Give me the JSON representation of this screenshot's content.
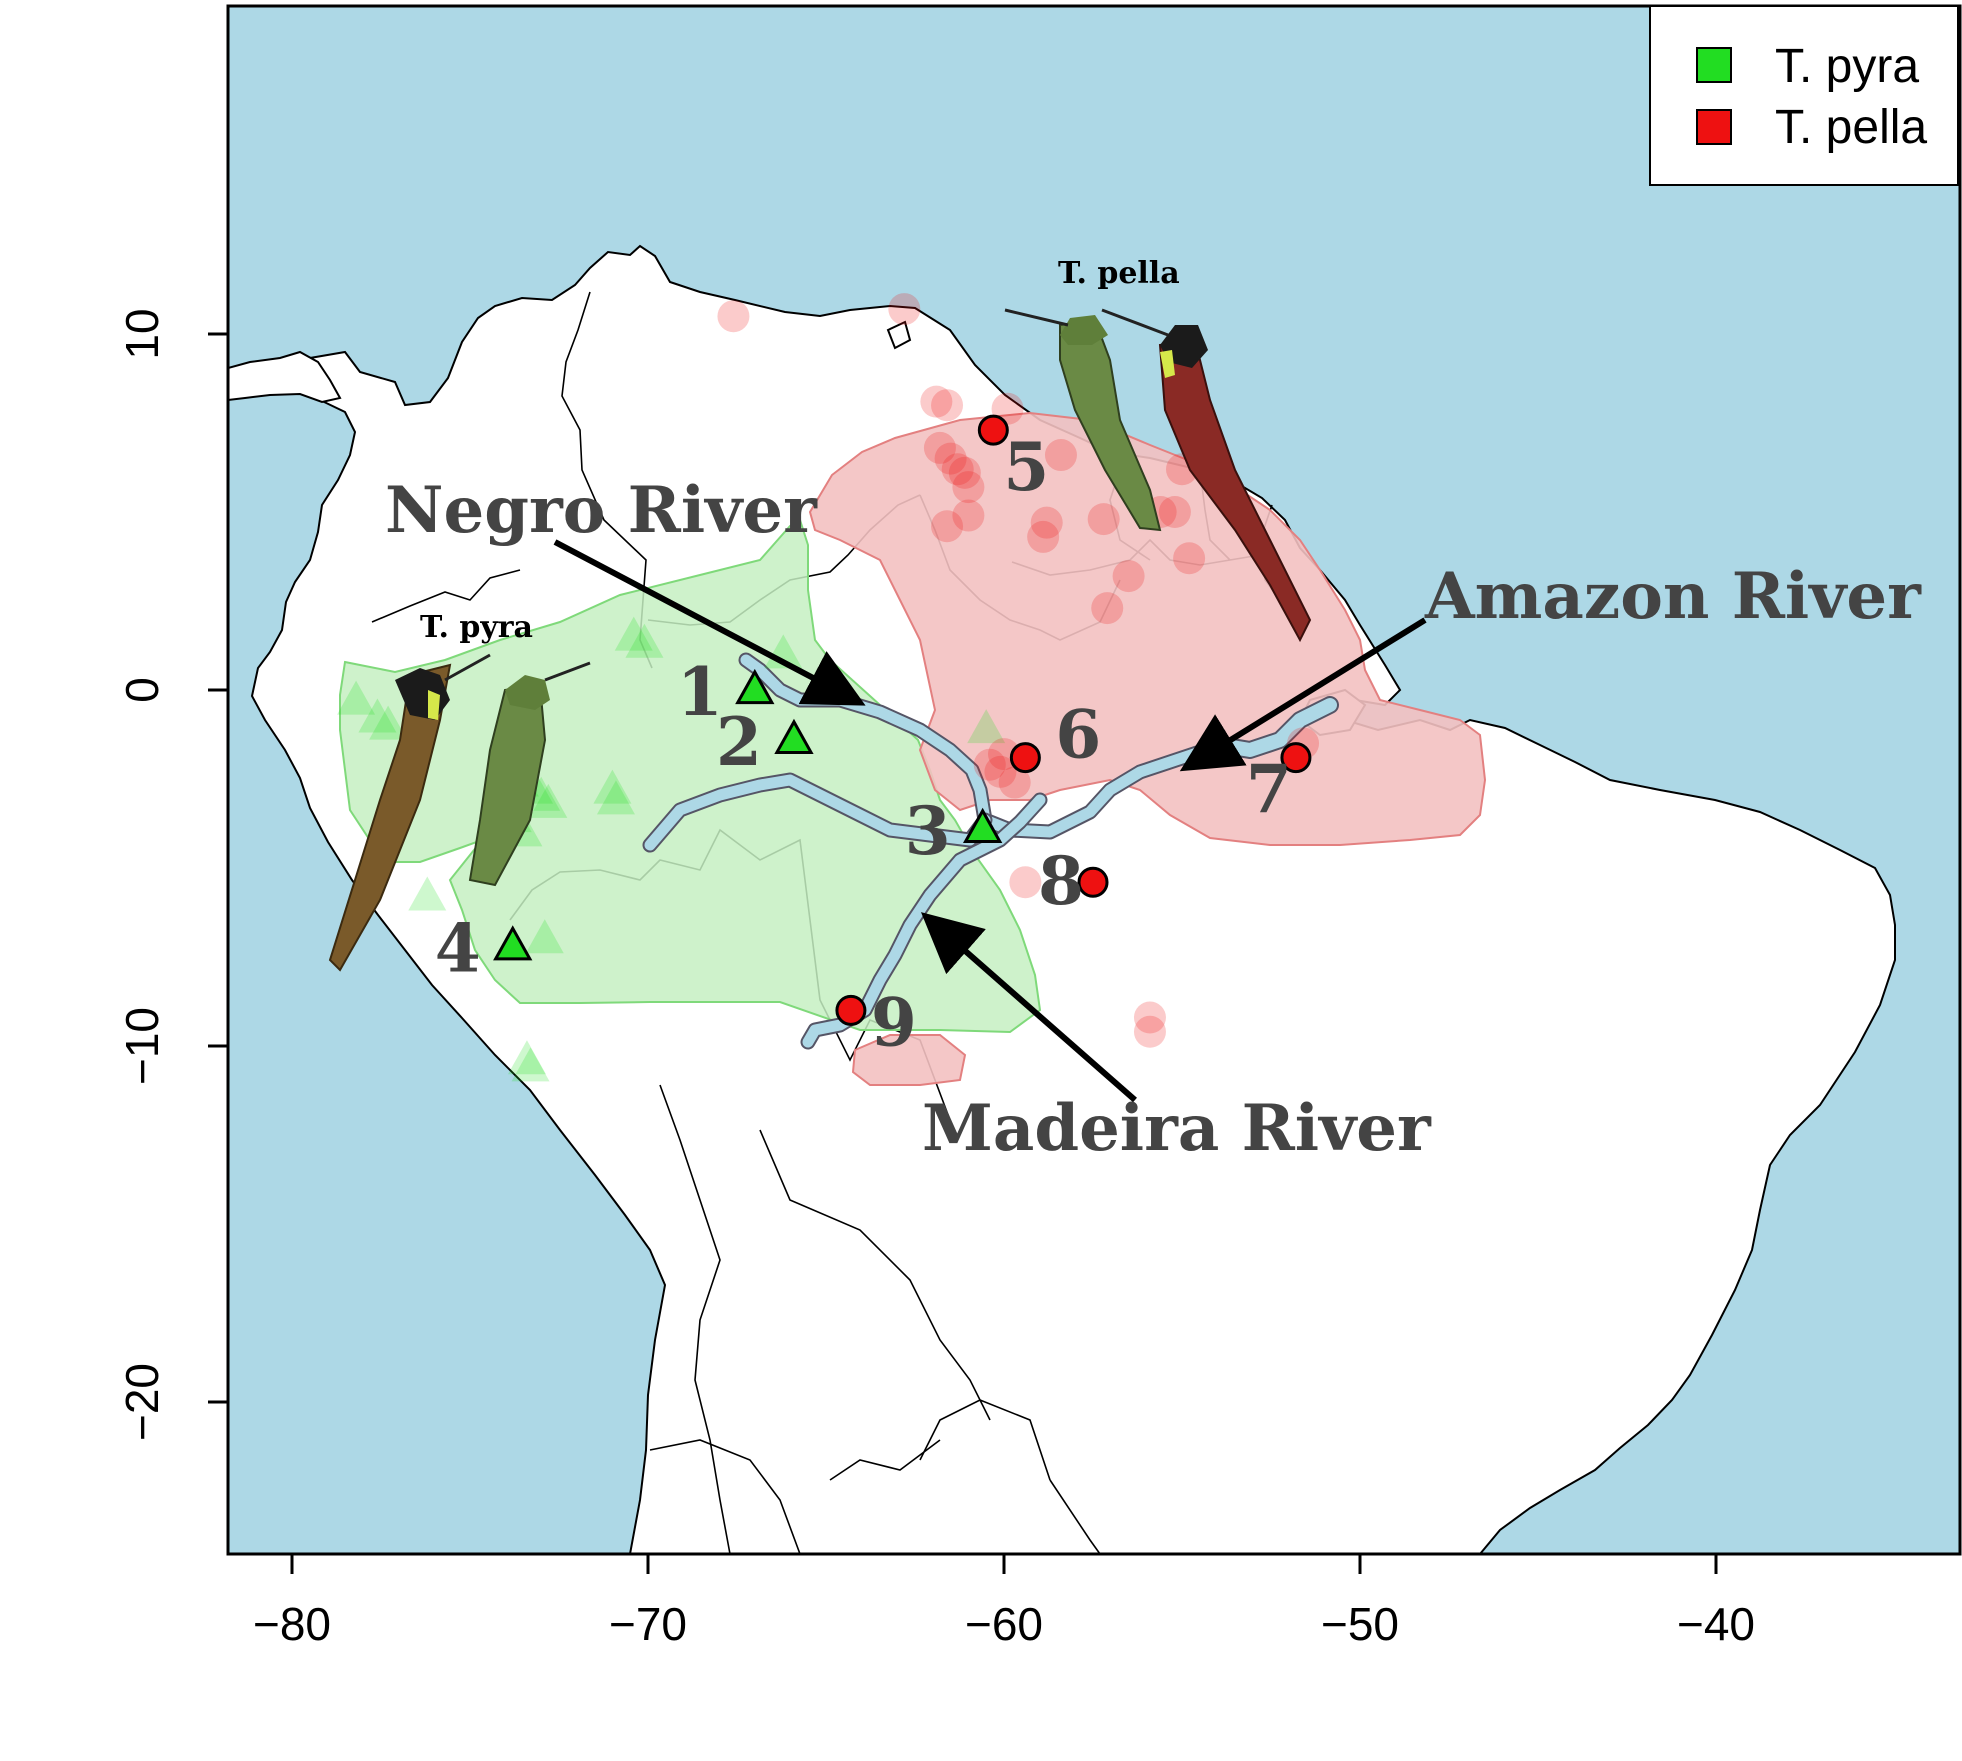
{
  "chart_data": {
    "type": "scatter",
    "x_ticks": [
      -80,
      -70,
      -60,
      -50,
      -40
    ],
    "y_ticks": [
      10,
      0,
      -10,
      -20
    ],
    "xlim": [
      -82,
      -33.5
    ],
    "ylim": [
      -24.3,
      19
    ],
    "legend_position": "top-right",
    "legend": [
      {
        "name": "T. pyra",
        "color": "#22dd22",
        "shape": "square"
      },
      {
        "name": "T. pella",
        "color": "#ee1111",
        "shape": "square"
      }
    ],
    "colors": {
      "ocean": "#add8e6",
      "land": "#ffffff",
      "pyra_range": "#c5f0c2",
      "pella_range": "#f3c1c1",
      "river": "#add8e6",
      "pyra_point": "#22dd22",
      "pella_point": "#ee1111"
    },
    "pyra_sites": [
      {
        "label": "1",
        "lon": -67.0,
        "lat": 0.0
      },
      {
        "label": "2",
        "lon": -65.9,
        "lat": -1.4
      },
      {
        "label": "3",
        "lon": -60.6,
        "lat": -3.9
      },
      {
        "label": "4",
        "lon": -73.8,
        "lat": -7.2
      }
    ],
    "pella_sites": [
      {
        "label": "5",
        "lon": -60.3,
        "lat": 7.3
      },
      {
        "label": "6",
        "lon": -59.4,
        "lat": -1.9
      },
      {
        "label": "7",
        "lon": -51.8,
        "lat": -1.9
      },
      {
        "label": "8",
        "lon": -57.5,
        "lat": -5.4
      },
      {
        "label": "9",
        "lon": -64.3,
        "lat": -9.0
      }
    ],
    "pyra_occurrences": [
      [
        -78.2,
        -0.3
      ],
      [
        -77.6,
        -0.8
      ],
      [
        -77.3,
        -1.0
      ],
      [
        -76.8,
        -2.2
      ],
      [
        -73.6,
        -2.6
      ],
      [
        -73.2,
        -2.8
      ],
      [
        -73.0,
        -3.0
      ],
      [
        -72.8,
        -3.2
      ],
      [
        -71.0,
        -2.8
      ],
      [
        -70.9,
        -3.1
      ],
      [
        -73.8,
        -3.6
      ],
      [
        -73.5,
        -4.0
      ],
      [
        -76.2,
        -5.8
      ],
      [
        -70.4,
        1.5
      ],
      [
        -70.1,
        1.3
      ],
      [
        -66.2,
        1.0
      ],
      [
        -60.5,
        -1.1
      ],
      [
        -73.4,
        -10.4
      ],
      [
        -73.3,
        -10.6
      ],
      [
        -72.9,
        -7.0
      ]
    ],
    "pella_occurrences": [
      [
        -67.6,
        10.5
      ],
      [
        -62.8,
        10.7
      ],
      [
        -61.9,
        8.1
      ],
      [
        -61.6,
        8.0
      ],
      [
        -61.8,
        6.8
      ],
      [
        -61.3,
        6.2
      ],
      [
        -61.1,
        6.1
      ],
      [
        -61.5,
        6.5
      ],
      [
        -61.0,
        5.7
      ],
      [
        -61.6,
        4.6
      ],
      [
        -61.0,
        4.9
      ],
      [
        -59.9,
        7.9
      ],
      [
        -58.4,
        6.6
      ],
      [
        -58.8,
        4.7
      ],
      [
        -58.9,
        4.3
      ],
      [
        -57.2,
        4.8
      ],
      [
        -56.5,
        3.2
      ],
      [
        -55.6,
        5.0
      ],
      [
        -55.2,
        5.0
      ],
      [
        -54.8,
        3.7
      ],
      [
        -57.1,
        2.3
      ],
      [
        -55.0,
        6.2
      ],
      [
        -60.4,
        -2.1
      ],
      [
        -60.1,
        -2.3
      ],
      [
        -60.0,
        -1.8
      ],
      [
        -59.7,
        -2.6
      ],
      [
        -59.4,
        -5.4
      ],
      [
        -55.9,
        -9.2
      ],
      [
        -55.9,
        -9.6
      ],
      [
        -51.6,
        -1.5
      ]
    ],
    "annotations": {
      "negro": "Negro River",
      "amazon": "Amazon River",
      "madeira": "Madeira River",
      "pyra_birds": "T. pyra",
      "pella_birds": "T. pella"
    }
  }
}
